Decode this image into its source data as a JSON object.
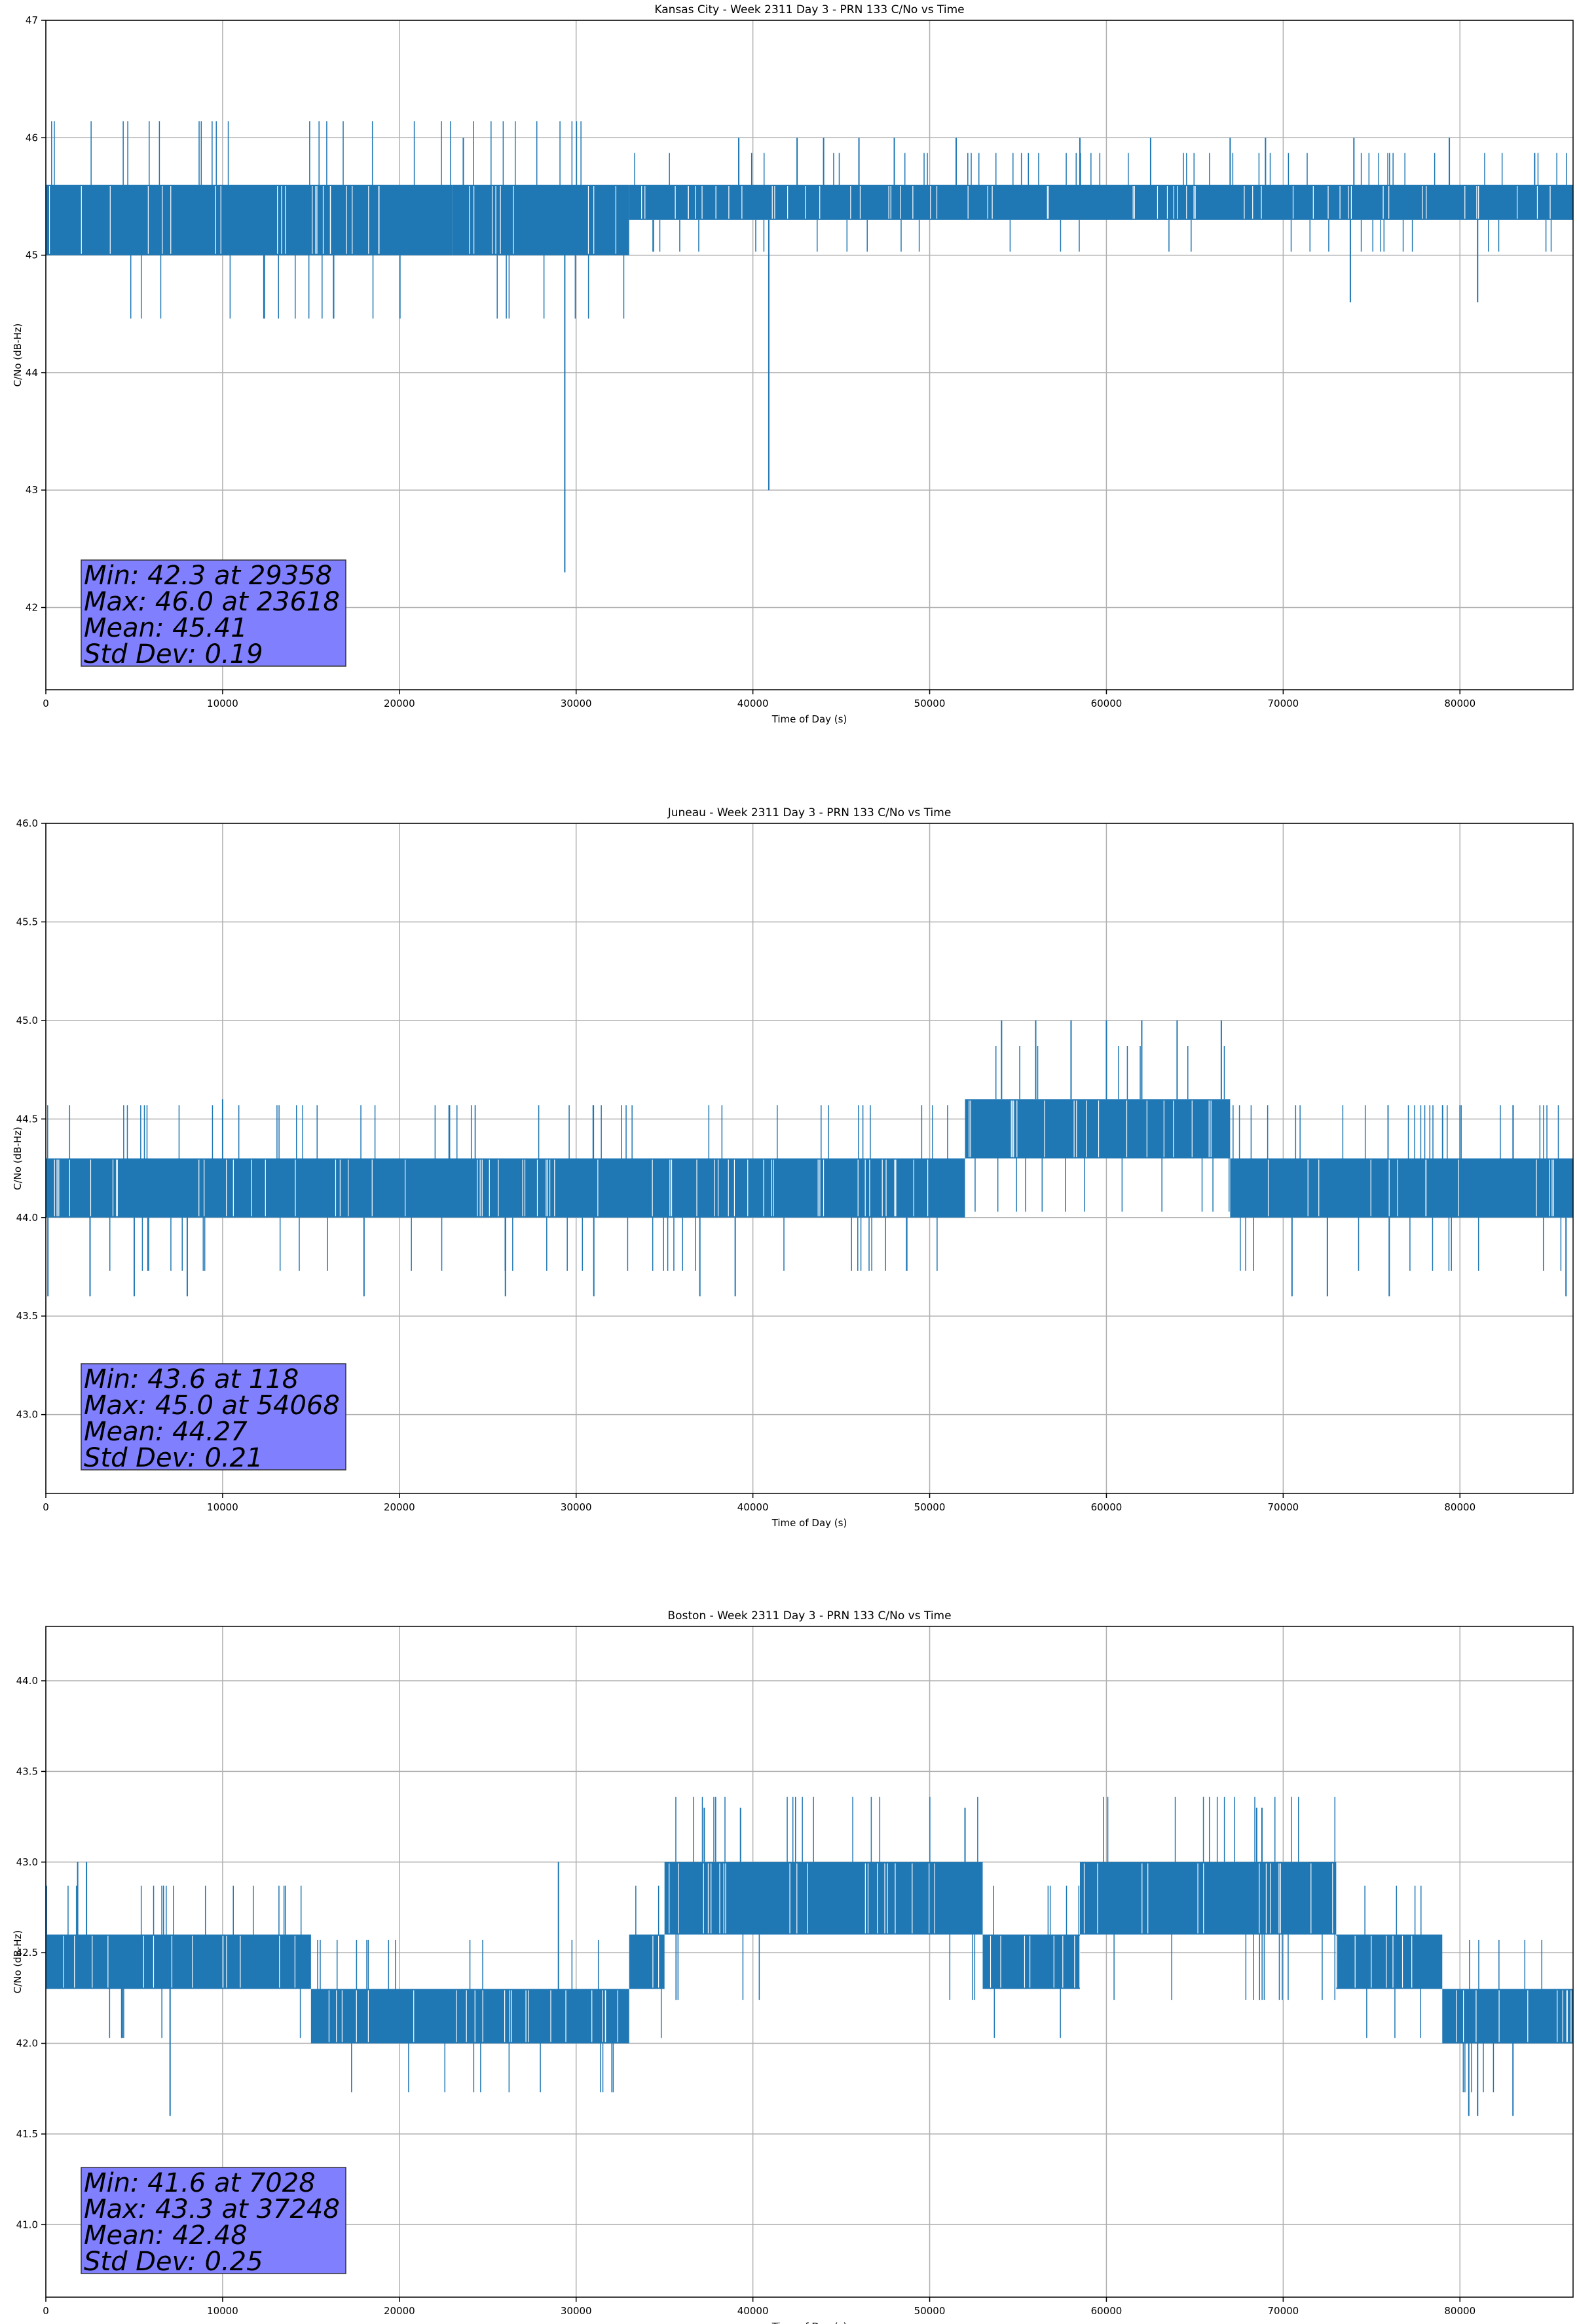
{
  "chart_data": [
    {
      "type": "line",
      "title": "Kansas City - Week 2311 Day 3 - PRN 133 C/No vs Time",
      "xlabel": "Time of Day (s)",
      "ylabel": "C/No (dB-Hz)",
      "xlim": [
        0,
        86400
      ],
      "ylim": [
        41.3,
        47.0
      ],
      "xticks": [
        0,
        10000,
        20000,
        30000,
        40000,
        50000,
        60000,
        70000,
        80000
      ],
      "yticks": [
        42,
        43,
        44,
        45,
        46,
        47
      ],
      "ytick_labels": [
        "42",
        "43",
        "44",
        "45",
        "46",
        "47"
      ],
      "grid": true,
      "line_color": "#1f77b4",
      "stats": {
        "min_label": "Min: 42.3 at 29358",
        "max_label": "Max: 46.0 at 23618",
        "mean_label": "Mean: 45.41",
        "std_label": "Std Dev: 0.19"
      },
      "band_segments": [
        {
          "x": [
            0,
            23000
          ],
          "low": 45.0,
          "high": 45.6
        },
        {
          "x": [
            23000,
            33000
          ],
          "low": 45.0,
          "high": 45.6
        },
        {
          "x": [
            33000,
            86400
          ],
          "low": 45.3,
          "high": 45.6
        }
      ],
      "spikes": [
        {
          "x": 23618,
          "y": 46.0
        },
        {
          "x": 29358,
          "y": 42.3
        },
        {
          "x": 39200,
          "y": 46.0
        },
        {
          "x": 40900,
          "y": 43.0
        },
        {
          "x": 42500,
          "y": 46.0
        },
        {
          "x": 44000,
          "y": 46.0
        },
        {
          "x": 46000,
          "y": 46.0
        },
        {
          "x": 48000,
          "y": 46.0
        },
        {
          "x": 51500,
          "y": 46.0
        },
        {
          "x": 58500,
          "y": 46.0
        },
        {
          "x": 62500,
          "y": 46.0
        },
        {
          "x": 67000,
          "y": 46.0
        },
        {
          "x": 69000,
          "y": 46.0
        },
        {
          "x": 73800,
          "y": 44.6
        },
        {
          "x": 74000,
          "y": 46.0
        },
        {
          "x": 79400,
          "y": 46.0
        },
        {
          "x": 81000,
          "y": 44.6
        }
      ]
    },
    {
      "type": "line",
      "title": "Juneau - Week 2311 Day 3 - PRN 133 C/No vs Time",
      "xlabel": "Time of Day (s)",
      "ylabel": "C/No (dB-Hz)",
      "xlim": [
        0,
        86400
      ],
      "ylim": [
        42.6,
        46.0
      ],
      "xticks": [
        0,
        10000,
        20000,
        30000,
        40000,
        50000,
        60000,
        70000,
        80000
      ],
      "yticks": [
        43.0,
        43.5,
        44.0,
        44.5,
        45.0,
        45.5,
        46.0
      ],
      "ytick_labels": [
        "43.0",
        "43.5",
        "44.0",
        "44.5",
        "45.0",
        "45.5",
        "46.0"
      ],
      "grid": true,
      "line_color": "#1f77b4",
      "stats": {
        "min_label": "Min: 43.6 at 118",
        "max_label": "Max: 45.0 at 54068",
        "mean_label": "Mean: 44.27",
        "std_label": "Std Dev: 0.21"
      },
      "band_segments": [
        {
          "x": [
            0,
            52000
          ],
          "low": 44.0,
          "high": 44.3
        },
        {
          "x": [
            52000,
            67000
          ],
          "low": 44.3,
          "high": 44.6
        },
        {
          "x": [
            67000,
            86400
          ],
          "low": 44.0,
          "high": 44.3
        }
      ],
      "spikes": [
        {
          "x": 118,
          "y": 43.6
        },
        {
          "x": 2500,
          "y": 43.6
        },
        {
          "x": 5000,
          "y": 43.6
        },
        {
          "x": 8000,
          "y": 43.6
        },
        {
          "x": 10000,
          "y": 44.6
        },
        {
          "x": 18000,
          "y": 43.6
        },
        {
          "x": 26000,
          "y": 43.6
        },
        {
          "x": 31000,
          "y": 43.6
        },
        {
          "x": 37000,
          "y": 43.6
        },
        {
          "x": 39000,
          "y": 43.6
        },
        {
          "x": 54068,
          "y": 45.0
        },
        {
          "x": 56000,
          "y": 45.0
        },
        {
          "x": 58000,
          "y": 45.0
        },
        {
          "x": 60000,
          "y": 45.0
        },
        {
          "x": 62000,
          "y": 45.0
        },
        {
          "x": 64000,
          "y": 45.0
        },
        {
          "x": 66500,
          "y": 45.0
        },
        {
          "x": 70500,
          "y": 43.6
        },
        {
          "x": 72500,
          "y": 43.6
        },
        {
          "x": 76000,
          "y": 43.6
        },
        {
          "x": 86000,
          "y": 43.6
        }
      ]
    },
    {
      "type": "line",
      "title": "Boston - Week 2311 Day 3 - PRN 133 C/No vs Time",
      "xlabel": "Time of Day (s)",
      "ylabel": "C/No (dB-Hz)",
      "xlim": [
        0,
        86400
      ],
      "ylim": [
        40.6,
        44.3
      ],
      "xticks": [
        0,
        10000,
        20000,
        30000,
        40000,
        50000,
        60000,
        70000,
        80000
      ],
      "yticks": [
        41.0,
        41.5,
        42.0,
        42.5,
        43.0,
        43.5,
        44.0
      ],
      "ytick_labels": [
        "41.0",
        "41.5",
        "42.0",
        "42.5",
        "43.0",
        "43.5",
        "44.0"
      ],
      "grid": true,
      "line_color": "#1f77b4",
      "stats": {
        "min_label": "Min: 41.6 at 7028",
        "max_label": "Max: 43.3 at 37248",
        "mean_label": "Mean: 42.48",
        "std_label": "Std Dev: 0.25"
      },
      "band_segments": [
        {
          "x": [
            0,
            15000
          ],
          "low": 42.3,
          "high": 42.6
        },
        {
          "x": [
            15000,
            33000
          ],
          "low": 42.0,
          "high": 42.3
        },
        {
          "x": [
            33000,
            35000
          ],
          "low": 42.3,
          "high": 42.6
        },
        {
          "x": [
            35000,
            53000
          ],
          "low": 42.6,
          "high": 43.0
        },
        {
          "x": 53000,
          "low": 42.3,
          "high": 42.6,
          "x_end": 58500
        },
        {
          "x": [
            58500,
            73000
          ],
          "low": 42.6,
          "high": 43.0
        },
        {
          "x": [
            73000,
            79000
          ],
          "low": 42.3,
          "high": 42.6
        },
        {
          "x": [
            79000,
            86400
          ],
          "low": 42.0,
          "high": 42.3
        }
      ],
      "spikes": [
        {
          "x": 1800,
          "y": 43.0
        },
        {
          "x": 2300,
          "y": 43.0
        },
        {
          "x": 7028,
          "y": 41.6
        },
        {
          "x": 29000,
          "y": 43.0
        },
        {
          "x": 37248,
          "y": 43.3
        },
        {
          "x": 39300,
          "y": 43.3
        },
        {
          "x": 52000,
          "y": 43.3
        },
        {
          "x": 68500,
          "y": 43.3
        },
        {
          "x": 68800,
          "y": 43.3
        },
        {
          "x": 80500,
          "y": 41.6
        },
        {
          "x": 81000,
          "y": 41.6
        },
        {
          "x": 83000,
          "y": 41.6
        }
      ]
    }
  ]
}
